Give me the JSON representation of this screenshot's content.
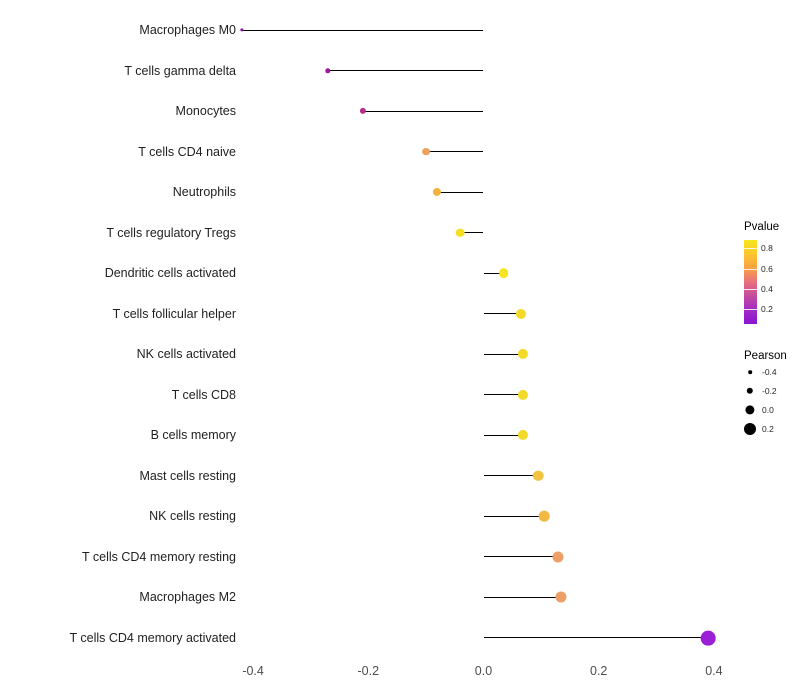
{
  "chart_data": {
    "type": "lollipop",
    "orientation": "horizontal",
    "title": "",
    "xlabel": "",
    "ylabel": "",
    "xlim": [
      -0.46,
      0.46
    ],
    "x_ticks": [
      -0.4,
      -0.2,
      0.0,
      0.2,
      0.4
    ],
    "x_tick_labels": [
      "-0.4",
      "-0.2",
      "0.0",
      "0.2",
      "0.4"
    ],
    "grid": false,
    "color_encoding": "Pvalue",
    "size_encoding": "Pearson",
    "points": [
      {
        "category": "Macrophages M0",
        "pearson": -0.42,
        "pvalue": 0.1,
        "color": "#8a0da5"
      },
      {
        "category": "T cells gamma delta",
        "pearson": -0.27,
        "pvalue": 0.18,
        "color": "#9c179e"
      },
      {
        "category": "Monocytes",
        "pearson": -0.21,
        "pvalue": 0.32,
        "color": "#b42e8d"
      },
      {
        "category": "T cells CD4 naive",
        "pearson": -0.1,
        "pvalue": 0.55,
        "color": "#eba25c"
      },
      {
        "category": "Neutrophils",
        "pearson": -0.08,
        "pvalue": 0.62,
        "color": "#f5b23a"
      },
      {
        "category": "T cells regulatory  Tregs",
        "pearson": -0.04,
        "pvalue": 0.75,
        "color": "#f4de26"
      },
      {
        "category": "Dendritic cells activated",
        "pearson": 0.035,
        "pvalue": 0.8,
        "color": "#f5e61f"
      },
      {
        "category": "T cells follicular helper",
        "pearson": 0.065,
        "pvalue": 0.78,
        "color": "#f2da28"
      },
      {
        "category": "NK cells activated",
        "pearson": 0.068,
        "pvalue": 0.78,
        "color": "#f2da28"
      },
      {
        "category": "T cells CD8",
        "pearson": 0.068,
        "pvalue": 0.78,
        "color": "#f2da28"
      },
      {
        "category": "B cells memory",
        "pearson": 0.068,
        "pvalue": 0.78,
        "color": "#f2da28"
      },
      {
        "category": "Mast cells resting",
        "pearson": 0.095,
        "pvalue": 0.68,
        "color": "#f2c340"
      },
      {
        "category": "NK cells resting",
        "pearson": 0.105,
        "pvalue": 0.64,
        "color": "#f2b843"
      },
      {
        "category": "T cells CD4 memory resting",
        "pearson": 0.13,
        "pvalue": 0.52,
        "color": "#ec9f66"
      },
      {
        "category": "Macrophages M2",
        "pearson": 0.135,
        "pvalue": 0.52,
        "color": "#ec9f66"
      },
      {
        "category": "T cells CD4 memory activated",
        "pearson": 0.39,
        "pvalue": 0.08,
        "color": "#9a1fd6"
      }
    ]
  },
  "legends": {
    "pvalue": {
      "title": "Pvalue",
      "tick_labels": [
        "0.8",
        "0.6",
        "0.4",
        "0.2"
      ],
      "gradient_colors": [
        "#f5e61f",
        "#fcc52c",
        "#f9a242",
        "#e8707e",
        "#c44b9e",
        "#a22bc4",
        "#8a15d0"
      ]
    },
    "pearson": {
      "title": "Pearson",
      "items": [
        {
          "label": "-0.4",
          "value": -0.4
        },
        {
          "label": "-0.2",
          "value": -0.2
        },
        {
          "label": "0.0",
          "value": 0.0
        },
        {
          "label": "0.2",
          "value": 0.2
        }
      ]
    }
  }
}
